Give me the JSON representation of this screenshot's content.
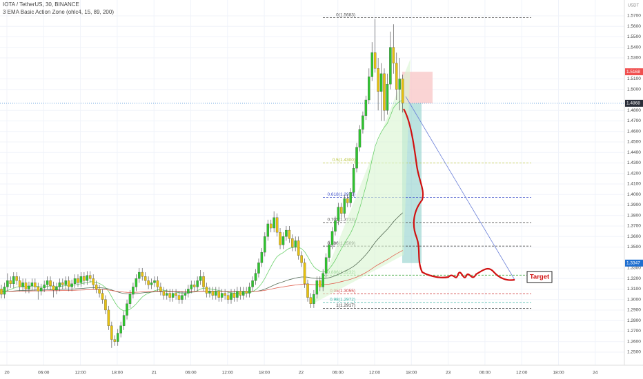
{
  "chart_data": {
    "type": "candlestick",
    "title": "IOTA / TetherUS, 30, BINANCE",
    "subtitle": "3 EMA Basic Action Zone (ohlc4, 15, 89, 200)",
    "y_axis_label": "USDT",
    "up_color": "#2fc42f",
    "down_color": "#e8c20f",
    "ema_periods": [
      15,
      89,
      200
    ],
    "ema_colors": [
      "#6ad06a",
      "#556b55",
      "#e06050"
    ],
    "open": [
      1.31,
      1.305,
      1.312,
      1.318,
      1.315,
      1.322,
      1.318,
      1.312,
      1.316,
      1.31,
      1.313,
      1.316,
      1.312,
      1.308,
      1.311,
      1.314,
      1.318,
      1.313,
      1.309,
      1.312,
      1.316,
      1.314,
      1.318,
      1.312,
      1.315,
      1.32,
      1.316,
      1.322,
      1.318,
      1.323,
      1.32,
      1.314,
      1.31,
      1.306,
      1.3,
      1.29,
      1.275,
      1.262,
      1.26,
      1.268,
      1.275,
      1.285,
      1.296,
      1.305,
      1.312,
      1.32,
      1.326,
      1.322,
      1.318,
      1.314,
      1.316,
      1.318,
      1.312,
      1.308,
      1.304,
      1.306,
      1.302,
      1.306,
      1.304,
      1.3,
      1.304,
      1.306,
      1.31,
      1.314,
      1.312,
      1.318,
      1.322,
      1.312,
      1.306,
      1.308,
      1.304,
      1.308,
      1.302,
      1.306,
      1.304,
      1.3,
      1.306,
      1.302,
      1.308,
      1.304,
      1.308,
      1.306,
      1.312,
      1.318,
      1.325,
      1.335,
      1.345,
      1.36,
      1.372,
      1.368,
      1.378,
      1.364,
      1.352,
      1.36,
      1.366,
      1.358,
      1.35,
      1.356,
      1.342,
      1.335,
      1.315,
      1.302,
      1.296,
      1.305,
      1.318,
      1.312,
      1.325,
      1.34,
      1.352,
      1.365,
      1.375,
      1.388,
      1.382,
      1.396,
      1.392,
      1.402,
      1.425,
      1.445,
      1.462,
      1.475,
      1.49,
      1.512,
      1.535,
      1.52,
      1.498,
      1.515,
      1.48,
      1.505,
      1.54,
      1.525,
      1.5,
      1.51
    ],
    "high": [
      1.314,
      1.316,
      1.325,
      1.322,
      1.326,
      1.326,
      1.322,
      1.32,
      1.32,
      1.317,
      1.32,
      1.32,
      1.316,
      1.315,
      1.318,
      1.322,
      1.322,
      1.317,
      1.316,
      1.32,
      1.32,
      1.322,
      1.322,
      1.319,
      1.324,
      1.324,
      1.326,
      1.326,
      1.327,
      1.327,
      1.324,
      1.318,
      1.314,
      1.31,
      1.304,
      1.294,
      1.279,
      1.266,
      1.272,
      1.279,
      1.289,
      1.3,
      1.309,
      1.316,
      1.324,
      1.33,
      1.33,
      1.326,
      1.322,
      1.32,
      1.322,
      1.322,
      1.316,
      1.312,
      1.31,
      1.31,
      1.31,
      1.31,
      1.308,
      1.308,
      1.31,
      1.314,
      1.318,
      1.318,
      1.322,
      1.328,
      1.326,
      1.316,
      1.312,
      1.312,
      1.312,
      1.312,
      1.31,
      1.31,
      1.308,
      1.31,
      1.31,
      1.312,
      1.312,
      1.312,
      1.312,
      1.316,
      1.322,
      1.329,
      1.339,
      1.349,
      1.364,
      1.376,
      1.376,
      1.384,
      1.382,
      1.368,
      1.364,
      1.37,
      1.37,
      1.362,
      1.36,
      1.36,
      1.346,
      1.339,
      1.319,
      1.306,
      1.309,
      1.322,
      1.322,
      1.329,
      1.344,
      1.356,
      1.369,
      1.379,
      1.392,
      1.392,
      1.4,
      1.4,
      1.406,
      1.429,
      1.449,
      1.466,
      1.479,
      1.494,
      1.52,
      1.545,
      1.567,
      1.53,
      1.525,
      1.52,
      1.515,
      1.555,
      1.562,
      1.535,
      1.53,
      1.514
    ],
    "low": [
      1.301,
      1.301,
      1.308,
      1.311,
      1.311,
      1.314,
      1.308,
      1.308,
      1.306,
      1.306,
      1.309,
      1.308,
      1.3,
      1.304,
      1.307,
      1.31,
      1.309,
      1.302,
      1.305,
      1.308,
      1.31,
      1.31,
      1.308,
      1.308,
      1.311,
      1.312,
      1.312,
      1.314,
      1.314,
      1.316,
      1.31,
      1.306,
      1.302,
      1.296,
      1.286,
      1.271,
      1.254,
      1.256,
      1.256,
      1.264,
      1.271,
      1.281,
      1.292,
      1.301,
      1.308,
      1.316,
      1.318,
      1.314,
      1.31,
      1.31,
      1.312,
      1.308,
      1.304,
      1.3,
      1.3,
      1.298,
      1.298,
      1.3,
      1.296,
      1.296,
      1.3,
      1.302,
      1.306,
      1.308,
      1.308,
      1.314,
      1.308,
      1.302,
      1.302,
      1.3,
      1.3,
      1.298,
      1.298,
      1.3,
      1.296,
      1.296,
      1.298,
      1.298,
      1.3,
      1.3,
      1.302,
      1.302,
      1.308,
      1.314,
      1.321,
      1.331,
      1.341,
      1.356,
      1.364,
      1.364,
      1.36,
      1.348,
      1.348,
      1.356,
      1.354,
      1.346,
      1.346,
      1.338,
      1.331,
      1.311,
      1.298,
      1.292,
      1.292,
      1.301,
      1.308,
      1.308,
      1.321,
      1.336,
      1.348,
      1.361,
      1.371,
      1.378,
      1.378,
      1.388,
      1.388,
      1.398,
      1.421,
      1.441,
      1.458,
      1.471,
      1.486,
      1.508,
      1.516,
      1.48,
      1.47,
      1.47,
      1.476,
      1.5,
      1.515,
      1.49,
      1.48,
      1.478
    ],
    "close": [
      1.305,
      1.312,
      1.318,
      1.315,
      1.322,
      1.318,
      1.312,
      1.316,
      1.31,
      1.313,
      1.316,
      1.312,
      1.308,
      1.311,
      1.314,
      1.318,
      1.313,
      1.309,
      1.312,
      1.316,
      1.314,
      1.318,
      1.312,
      1.315,
      1.32,
      1.316,
      1.322,
      1.318,
      1.323,
      1.32,
      1.314,
      1.31,
      1.306,
      1.3,
      1.29,
      1.275,
      1.262,
      1.26,
      1.268,
      1.275,
      1.285,
      1.296,
      1.305,
      1.312,
      1.32,
      1.326,
      1.322,
      1.318,
      1.314,
      1.316,
      1.318,
      1.312,
      1.308,
      1.304,
      1.306,
      1.302,
      1.306,
      1.304,
      1.3,
      1.304,
      1.306,
      1.31,
      1.314,
      1.312,
      1.318,
      1.322,
      1.312,
      1.306,
      1.308,
      1.304,
      1.308,
      1.302,
      1.306,
      1.304,
      1.3,
      1.306,
      1.302,
      1.308,
      1.304,
      1.308,
      1.306,
      1.312,
      1.318,
      1.325,
      1.335,
      1.345,
      1.36,
      1.372,
      1.368,
      1.378,
      1.364,
      1.352,
      1.36,
      1.366,
      1.358,
      1.35,
      1.356,
      1.342,
      1.335,
      1.315,
      1.302,
      1.296,
      1.305,
      1.318,
      1.312,
      1.325,
      1.34,
      1.352,
      1.365,
      1.375,
      1.388,
      1.382,
      1.396,
      1.392,
      1.402,
      1.425,
      1.445,
      1.462,
      1.475,
      1.49,
      1.512,
      1.535,
      1.52,
      1.498,
      1.515,
      1.48,
      1.505,
      1.54,
      1.525,
      1.5,
      1.51,
      1.487
    ],
    "ylim": [
      1.2375,
      1.5851
    ],
    "yticks": [
      {
        "value": 1.25,
        "label": "1.2500"
      },
      {
        "value": 1.26,
        "label": "1.2600"
      },
      {
        "value": 1.27,
        "label": "1.2700"
      },
      {
        "value": 1.28,
        "label": "1.2800"
      },
      {
        "value": 1.29,
        "label": "1.2900"
      },
      {
        "value": 1.3,
        "label": "1.3000"
      },
      {
        "value": 1.31,
        "label": "1.3100"
      },
      {
        "value": 1.32,
        "label": "1.3200"
      },
      {
        "value": 1.33,
        "label": "1.3300"
      },
      {
        "value": 1.35,
        "label": "1.3500"
      },
      {
        "value": 1.36,
        "label": "1.3600"
      },
      {
        "value": 1.37,
        "label": "1.3700"
      },
      {
        "value": 1.38,
        "label": "1.3800"
      },
      {
        "value": 1.39,
        "label": "1.3900"
      },
      {
        "value": 1.4,
        "label": "1.4000"
      },
      {
        "value": 1.41,
        "label": "1.4100"
      },
      {
        "value": 1.42,
        "label": "1.4200"
      },
      {
        "value": 1.43,
        "label": "1.4300"
      },
      {
        "value": 1.44,
        "label": "1.4400"
      },
      {
        "value": 1.45,
        "label": "1.4500"
      },
      {
        "value": 1.46,
        "label": "1.4600"
      },
      {
        "value": 1.47,
        "label": "1.4700"
      },
      {
        "value": 1.48,
        "label": "1.4800"
      },
      {
        "value": 1.5,
        "label": "1.5000"
      },
      {
        "value": 1.51,
        "label": "1.5100"
      },
      {
        "value": 1.53,
        "label": "1.5300"
      },
      {
        "value": 1.54,
        "label": "1.5400"
      },
      {
        "value": 1.55,
        "label": "1.5500"
      },
      {
        "value": 1.56,
        "label": "1.5600"
      },
      {
        "value": 1.57,
        "label": "1.5700"
      }
    ],
    "xtick_labels": [
      "20",
      "06:00",
      "12:00",
      "18:00",
      "21",
      "06:00",
      "12:00",
      "18:00",
      "22",
      "06:00",
      "12:00",
      "18:00",
      "23",
      "06:00",
      "12:00",
      "18:00",
      "24"
    ],
    "price_labels": [
      {
        "value": 1.5168,
        "label": "1.5168",
        "color": "#f05050"
      },
      {
        "value": 1.4868,
        "label": "1.4868",
        "color": "#2a2e39"
      },
      {
        "value": 1.3347,
        "label": "1.3347",
        "color": "#1f6fd0"
      }
    ],
    "fib_levels": [
      {
        "value": 1.5683,
        "label": "0(1.5683)",
        "color": "#555555"
      },
      {
        "value": 1.43,
        "label": "0.5(1.4300)",
        "color": "#b8c436"
      },
      {
        "value": 1.3973,
        "label": "0.618(1.3973)",
        "color": "#4455cc"
      },
      {
        "value": 1.3733,
        "label": "0.705(1.3733)",
        "color": "#555555"
      },
      {
        "value": 1.3509,
        "label": "0.786(1.3509)",
        "color": "#333333"
      },
      {
        "value": 1.3232,
        "label": "0.886(1.3232)",
        "color": "#44aa44"
      },
      {
        "value": 1.3055,
        "label": "0.95(1.3055)",
        "color": "#d04040"
      },
      {
        "value": 1.2972,
        "label": "0.98(1.2972)",
        "color": "#30b0a0"
      },
      {
        "value": 1.2917,
        "label": "1(1.2917)",
        "color": "#333333"
      }
    ],
    "position": {
      "entry": 1.4868,
      "stop": 1.5168,
      "target": 1.3347
    },
    "annotation": "Target"
  }
}
